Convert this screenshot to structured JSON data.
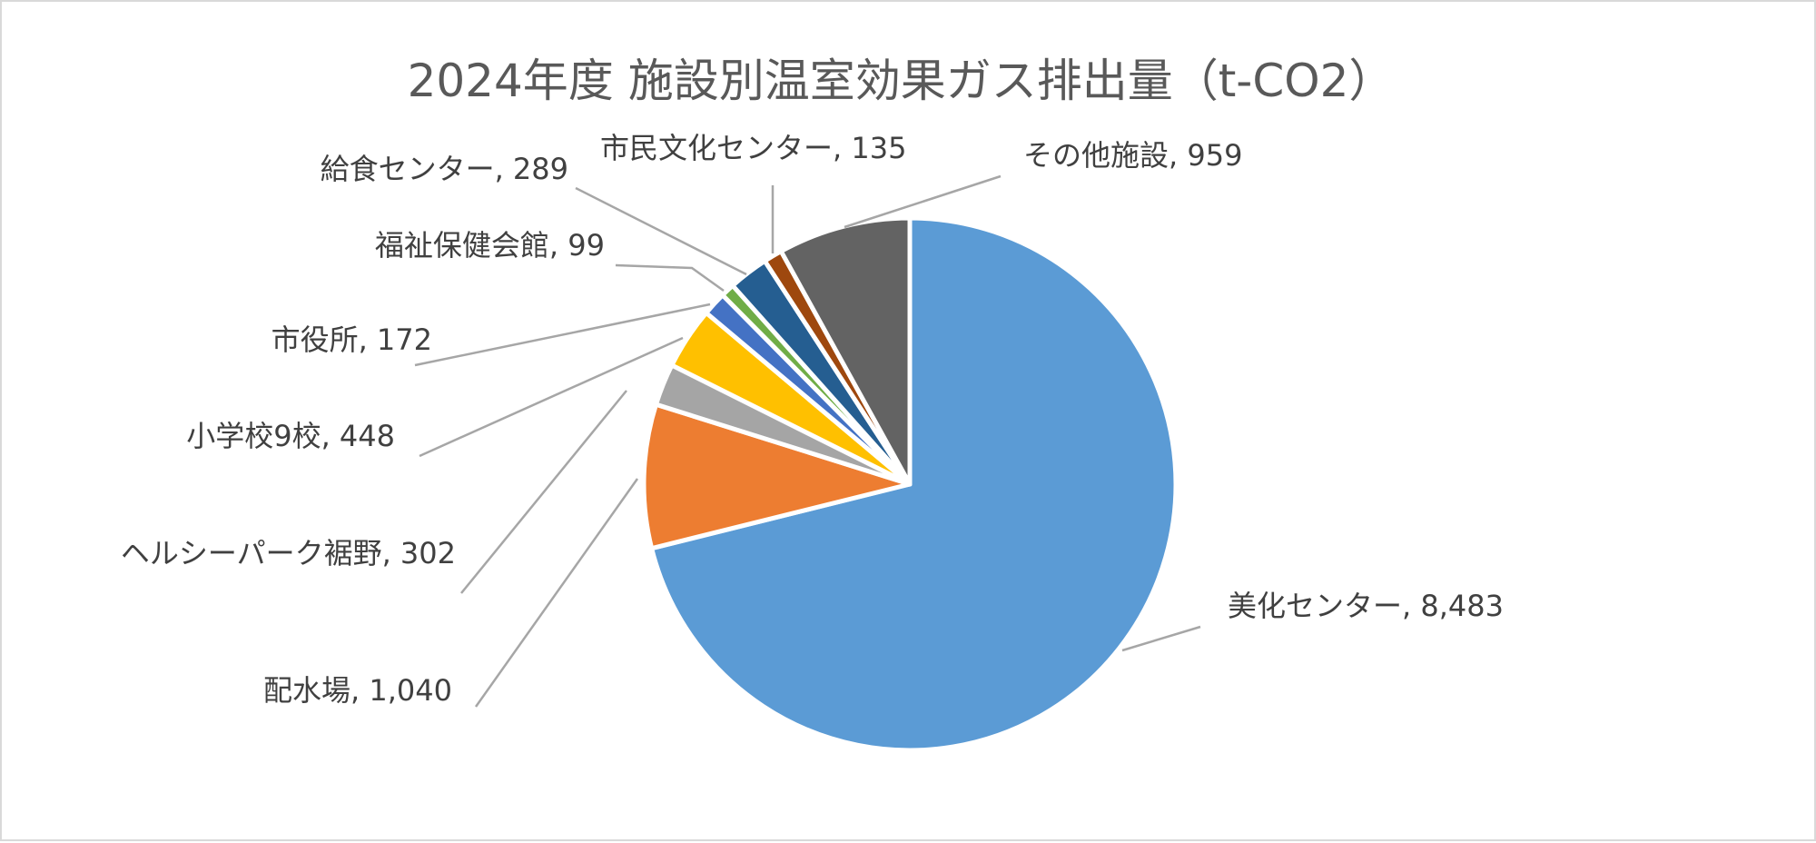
{
  "chart_data": {
    "type": "pie",
    "title": "2024年度 施設別温室効果ガス排出量（t-CO2）",
    "legend": "none",
    "start_angle": "12 o'clock, clockwise",
    "slices": [
      {
        "label": "美化センター",
        "value": 8483,
        "value_label": "8,483",
        "text": "美化センター, 8,483",
        "color": "#5b9bd5"
      },
      {
        "label": "配水場",
        "value": 1040,
        "value_label": "1,040",
        "text": "配水場, 1,040",
        "color": "#ed7d31"
      },
      {
        "label": "ヘルシーパーク裾野",
        "value": 302,
        "value_label": "302",
        "text": "ヘルシーパーク裾野, 302",
        "color": "#a5a5a5"
      },
      {
        "label": "小学校9校",
        "value": 448,
        "value_label": "448",
        "text": "小学校9校, 448",
        "color": "#ffc000"
      },
      {
        "label": "市役所",
        "value": 172,
        "value_label": "172",
        "text": "市役所, 172",
        "color": "#4472c4"
      },
      {
        "label": "福祉保健会館",
        "value": 99,
        "value_label": "99",
        "text": "福祉保健会館, 99",
        "color": "#70ad47"
      },
      {
        "label": "給食センター",
        "value": 289,
        "value_label": "289",
        "text": "給食センター, 289",
        "color": "#255e91"
      },
      {
        "label": "市民文化センター",
        "value": 135,
        "value_label": "135",
        "text": "市民文化センター, 135",
        "color": "#9e480e"
      },
      {
        "label": "その他施設",
        "value": 959,
        "value_label": "959",
        "text": "その他施設, 959",
        "color": "#636363"
      }
    ]
  }
}
